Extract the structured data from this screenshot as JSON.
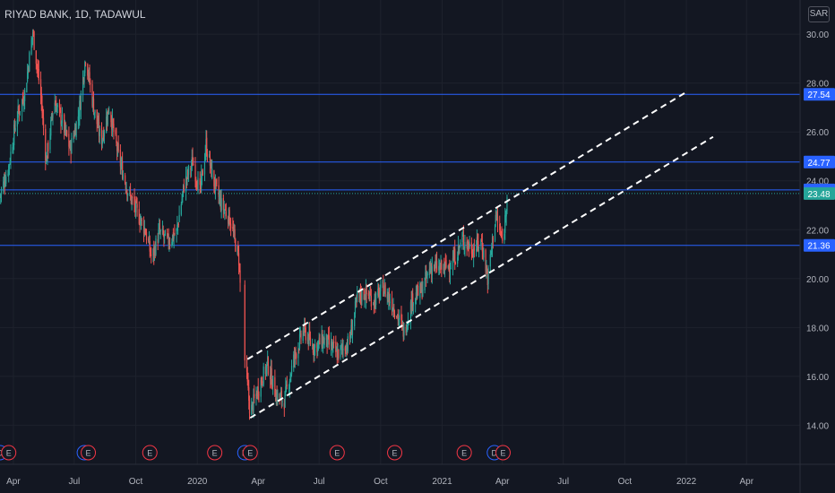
{
  "header": {
    "title": "RIYAD BANK, 1D, TADAWUL",
    "currency": "SAR"
  },
  "colors": {
    "background": "#131722",
    "up": "#26a69a",
    "down": "#ef5350",
    "hline": "#2962ff",
    "channel": "#ffffff",
    "axis_text": "#b2b5be",
    "last_price": "#26a69a"
  },
  "chart_data": {
    "type": "candlestick",
    "title": "RIYAD BANK, 1D, TADAWUL",
    "y_unit": "SAR",
    "ylim": [
      12.4,
      31.4
    ],
    "xlim": [
      "2019-03-12",
      "2022-06-20"
    ],
    "y_ticks": [
      "14.00",
      "16.00",
      "18.00",
      "20.00",
      "22.00",
      "24.00",
      "26.00",
      "28.00",
      "30.00"
    ],
    "x_ticks": [
      {
        "label": "Apr",
        "date": "2019-04-01"
      },
      {
        "label": "Jul",
        "date": "2019-07-01"
      },
      {
        "label": "Oct",
        "date": "2019-10-01"
      },
      {
        "label": "2020",
        "date": "2020-01-01"
      },
      {
        "label": "Apr",
        "date": "2020-04-01"
      },
      {
        "label": "Jul",
        "date": "2020-07-01"
      },
      {
        "label": "Oct",
        "date": "2020-10-01"
      },
      {
        "label": "2021",
        "date": "2021-01-01"
      },
      {
        "label": "Apr",
        "date": "2021-04-01"
      },
      {
        "label": "Jul",
        "date": "2021-07-01"
      },
      {
        "label": "Oct",
        "date": "2021-10-01"
      },
      {
        "label": "2022",
        "date": "2022-01-01"
      },
      {
        "label": "Apr",
        "date": "2022-04-01"
      }
    ],
    "grid": true,
    "price_path": [
      [
        "2019-03-12",
        23.4
      ],
      [
        "2019-03-25",
        24.6
      ],
      [
        "2019-04-05",
        26.5
      ],
      [
        "2019-04-18",
        27.6
      ],
      [
        "2019-04-30",
        30.1
      ],
      [
        "2019-05-12",
        27.5
      ],
      [
        "2019-05-20",
        24.8
      ],
      [
        "2019-06-01",
        27.3
      ],
      [
        "2019-06-12",
        26.5
      ],
      [
        "2019-06-25",
        25.3
      ],
      [
        "2019-07-08",
        26.8
      ],
      [
        "2019-07-18",
        29.1
      ],
      [
        "2019-07-30",
        27.0
      ],
      [
        "2019-08-10",
        25.6
      ],
      [
        "2019-08-22",
        27.0
      ],
      [
        "2019-09-05",
        25.0
      ],
      [
        "2019-09-20",
        23.5
      ],
      [
        "2019-10-03",
        22.7
      ],
      [
        "2019-10-15",
        22.0
      ],
      [
        "2019-10-25",
        20.8
      ],
      [
        "2019-11-05",
        21.9
      ],
      [
        "2019-11-18",
        21.5
      ],
      [
        "2019-12-01",
        21.9
      ],
      [
        "2019-12-12",
        23.8
      ],
      [
        "2019-12-25",
        24.8
      ],
      [
        "2020-01-05",
        23.5
      ],
      [
        "2020-01-14",
        25.5
      ],
      [
        "2020-01-25",
        24.0
      ],
      [
        "2020-02-06",
        23.0
      ],
      [
        "2020-02-18",
        22.5
      ],
      [
        "2020-03-03",
        20.8
      ],
      [
        "2020-03-10",
        17.2
      ],
      [
        "2020-03-20",
        14.5
      ],
      [
        "2020-04-01",
        15.5
      ],
      [
        "2020-04-15",
        16.5
      ],
      [
        "2020-04-28",
        15.2
      ],
      [
        "2020-05-10",
        15.0
      ],
      [
        "2020-05-25",
        16.8
      ],
      [
        "2020-06-08",
        17.9
      ],
      [
        "2020-06-22",
        17.2
      ],
      [
        "2020-07-10",
        17.5
      ],
      [
        "2020-07-28",
        16.9
      ],
      [
        "2020-08-15",
        17.4
      ],
      [
        "2020-08-28",
        19.3
      ],
      [
        "2020-09-08",
        19.4
      ],
      [
        "2020-09-22",
        19.1
      ],
      [
        "2020-10-05",
        19.6
      ],
      [
        "2020-10-20",
        18.9
      ],
      [
        "2020-11-05",
        17.8
      ],
      [
        "2020-11-18",
        19.2
      ],
      [
        "2020-12-01",
        19.5
      ],
      [
        "2020-12-15",
        20.5
      ],
      [
        "2021-01-01",
        20.4
      ],
      [
        "2021-01-15",
        20.6
      ],
      [
        "2021-02-01",
        21.6
      ],
      [
        "2021-02-15",
        21.2
      ],
      [
        "2021-03-01",
        21.5
      ],
      [
        "2021-03-10",
        20.0
      ],
      [
        "2021-03-22",
        22.6
      ],
      [
        "2021-04-02",
        21.4
      ],
      [
        "2021-04-08",
        23.5
      ]
    ],
    "gap": [
      "2020-03-05",
      "2020-03-12"
    ],
    "horizontal_lines": [
      {
        "label": "27.54",
        "value": 27.54,
        "style": "solid",
        "color": "#2962ff"
      },
      {
        "label": "24.77",
        "value": 24.77,
        "style": "solid",
        "color": "#2962ff"
      },
      {
        "label": "23.63",
        "value": 23.63,
        "style": "solid",
        "color": "#2962ff"
      },
      {
        "label": "23.48",
        "value": 23.48,
        "style": "dotted",
        "color": "#26a69a",
        "last_price": true
      },
      {
        "label": "21.36",
        "value": 21.36,
        "style": "solid",
        "color": "#2962ff"
      }
    ],
    "trend_channel": [
      {
        "start": [
          "2020-03-16",
          16.7
        ],
        "end": [
          "2021-12-30",
          27.6
        ]
      },
      {
        "start": [
          "2020-03-20",
          14.3
        ],
        "end": [
          "2022-02-10",
          25.8
        ]
      }
    ],
    "events": [
      {
        "type": "D",
        "date": "2019-03-12"
      },
      {
        "type": "E",
        "date": "2019-03-25"
      },
      {
        "type": "D",
        "date": "2019-07-16"
      },
      {
        "type": "E",
        "date": "2019-07-22"
      },
      {
        "type": "E",
        "date": "2019-10-22"
      },
      {
        "type": "E",
        "date": "2020-01-27"
      },
      {
        "type": "D",
        "date": "2020-03-12"
      },
      {
        "type": "E",
        "date": "2020-03-20"
      },
      {
        "type": "E",
        "date": "2020-07-28"
      },
      {
        "type": "E",
        "date": "2020-10-22"
      },
      {
        "type": "E",
        "date": "2021-02-03"
      },
      {
        "type": "D",
        "date": "2021-03-20"
      },
      {
        "type": "E",
        "date": "2021-04-02"
      }
    ]
  }
}
